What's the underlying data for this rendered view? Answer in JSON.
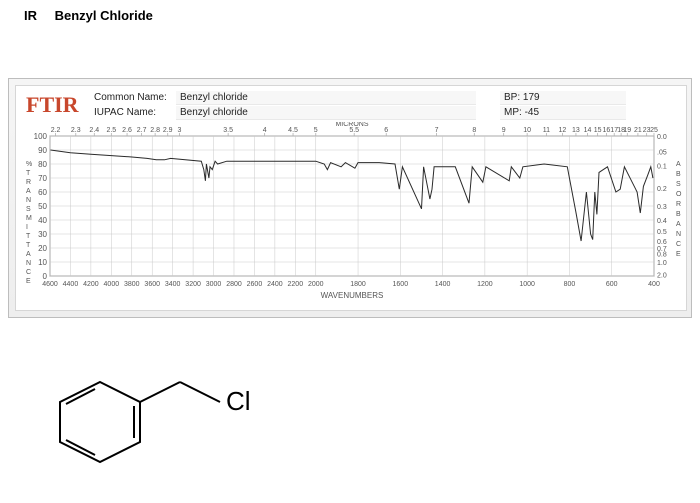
{
  "title": {
    "ir": "IR",
    "compound": "Benzyl Chloride"
  },
  "header": {
    "ftir": "FTIR",
    "commonNameLabel": "Common Name:",
    "commonName": "Benzyl chloride",
    "iupacLabel": "IUPAC Name:",
    "iupacName": "Benzyl chloride",
    "bpLabel": "BP:",
    "bp": "179",
    "mpLabel": "MP:",
    "mp": "-45"
  },
  "chart": {
    "type": "line",
    "x_axis_label": "WAVENUMBERS",
    "top_label": "MICRONS",
    "left_axis_label": "% TRANSMITTANCE",
    "right_axis_label": "ABSORBANCE",
    "x_min": 400,
    "x_max": 4600,
    "x_ticks": [
      4600,
      4400,
      4200,
      4000,
      3800,
      3600,
      3400,
      3200,
      3000,
      2800,
      2600,
      2400,
      2200,
      2000,
      1800,
      1600,
      1400,
      1200,
      1000,
      800,
      600,
      400
    ],
    "top_microns": [
      "2.2",
      "2.3",
      "2.4",
      "2.5",
      "2.6",
      "2.7",
      "2.8",
      "2.9",
      "3",
      "3.5",
      "4",
      "4.5",
      "5",
      "5.5",
      "6",
      "7",
      "8",
      "9",
      "10",
      "11",
      "12",
      "13",
      "14",
      "15",
      "16",
      "17",
      "18",
      "19",
      "21",
      "23",
      "25"
    ],
    "y_left_ticks": [
      100,
      90,
      80,
      70,
      60,
      50,
      40,
      30,
      20,
      10,
      0
    ],
    "y_right_ticks": [
      "0.0",
      ".05",
      "0.1",
      "0.2",
      "0.3",
      "0.4",
      "0.5",
      "0.6",
      "0.7",
      "0.8",
      "1.0",
      "2.0"
    ],
    "line_color": "#2a2a2a",
    "grid_color": "#c9c9c9",
    "background": "#ffffff",
    "title_fontsize": 8,
    "trace_wn_pct": [
      [
        4595,
        90
      ],
      [
        4400,
        88
      ],
      [
        4200,
        87
      ],
      [
        4000,
        86
      ],
      [
        3800,
        85
      ],
      [
        3650,
        84
      ],
      [
        3560,
        83
      ],
      [
        3480,
        83
      ],
      [
        3420,
        84
      ],
      [
        3120,
        82
      ],
      [
        3095,
        76
      ],
      [
        3080,
        68
      ],
      [
        3070,
        80
      ],
      [
        3045,
        70
      ],
      [
        3035,
        78
      ],
      [
        3012,
        76
      ],
      [
        2985,
        82
      ],
      [
        2960,
        80
      ],
      [
        2870,
        82
      ],
      [
        2700,
        82
      ],
      [
        2400,
        82
      ],
      [
        2200,
        82
      ],
      [
        2000,
        82
      ],
      [
        1960,
        80
      ],
      [
        1945,
        76
      ],
      [
        1930,
        81
      ],
      [
        1880,
        78
      ],
      [
        1860,
        81
      ],
      [
        1815,
        77
      ],
      [
        1800,
        81
      ],
      [
        1700,
        81
      ],
      [
        1625,
        80
      ],
      [
        1605,
        62
      ],
      [
        1590,
        78
      ],
      [
        1500,
        48
      ],
      [
        1490,
        78
      ],
      [
        1460,
        55
      ],
      [
        1450,
        62
      ],
      [
        1440,
        78
      ],
      [
        1390,
        78
      ],
      [
        1340,
        78
      ],
      [
        1275,
        52
      ],
      [
        1260,
        78
      ],
      [
        1210,
        67
      ],
      [
        1195,
        78
      ],
      [
        1085,
        68
      ],
      [
        1075,
        78
      ],
      [
        1035,
        70
      ],
      [
        1020,
        78
      ],
      [
        920,
        80
      ],
      [
        810,
        78
      ],
      [
        770,
        46
      ],
      [
        745,
        25
      ],
      [
        720,
        60
      ],
      [
        700,
        30
      ],
      [
        690,
        26
      ],
      [
        680,
        60
      ],
      [
        670,
        44
      ],
      [
        660,
        74
      ],
      [
        620,
        78
      ],
      [
        580,
        60
      ],
      [
        560,
        62
      ],
      [
        540,
        78
      ],
      [
        480,
        60
      ],
      [
        465,
        45
      ],
      [
        450,
        64
      ],
      [
        430,
        72
      ],
      [
        415,
        78
      ],
      [
        405,
        70
      ]
    ]
  },
  "structure": {
    "label": "Cl",
    "ring_color": "#000000",
    "bond_color": "#000000",
    "label_fontsize": 26
  }
}
